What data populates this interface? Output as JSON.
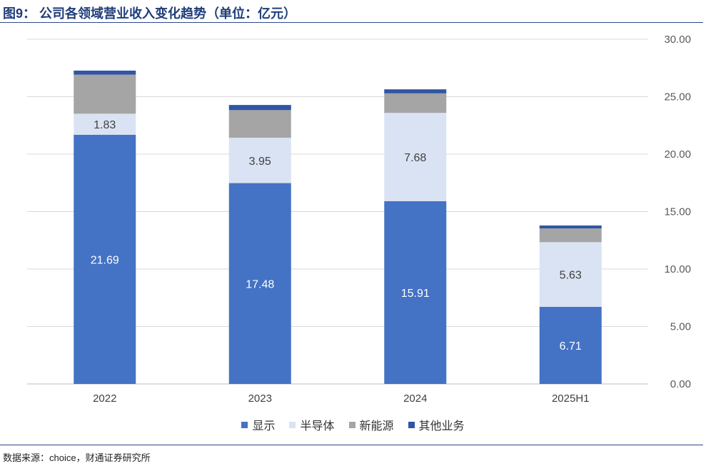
{
  "page": {
    "title": "图9： 公司各领域营业收入变化趋势（单位：亿元）",
    "source": "数据来源：choice，财通证券研究所"
  },
  "chart_data": {
    "type": "bar",
    "stacked": true,
    "categories": [
      "2022",
      "2023",
      "2024",
      "2025H1"
    ],
    "series": [
      {
        "name": "显示",
        "values": [
          21.69,
          17.48,
          15.91,
          6.71
        ],
        "color": "#4472c4",
        "label_color": "#ffffff",
        "show_labels": true
      },
      {
        "name": "半导体",
        "values": [
          1.83,
          3.95,
          7.68,
          5.63
        ],
        "color": "#dae3f3",
        "label_color": "#404040",
        "show_labels": true
      },
      {
        "name": "新能源",
        "values": [
          3.4,
          2.4,
          1.7,
          1.2
        ],
        "color": "#a5a5a5",
        "label_color": "#404040",
        "show_labels": false
      },
      {
        "name": "其他业务",
        "values": [
          0.35,
          0.45,
          0.35,
          0.25
        ],
        "color": "#2f55a4",
        "label_color": "#ffffff",
        "show_labels": false
      }
    ],
    "y_axis": {
      "position": "right",
      "min": 0,
      "max": 30,
      "step": 5,
      "decimals": 2
    },
    "grid": true,
    "legend": "bottom"
  }
}
